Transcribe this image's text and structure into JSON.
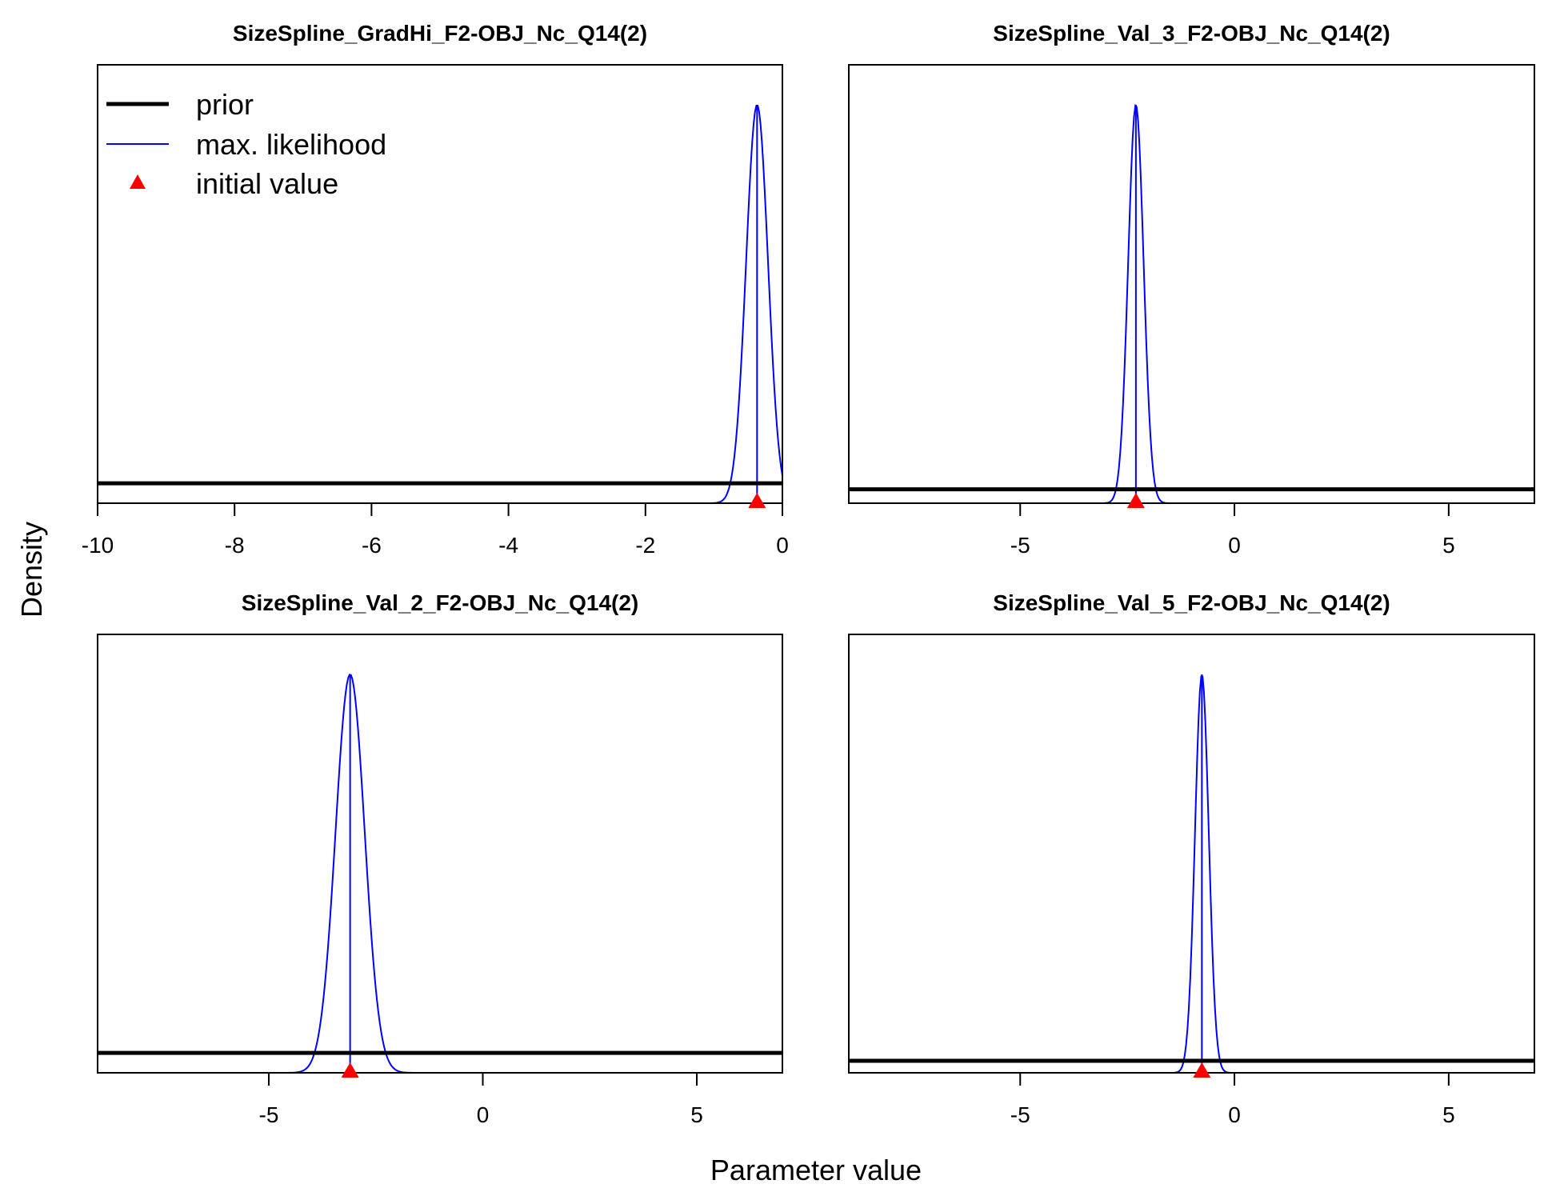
{
  "figure": {
    "xlabel": "Parameter value",
    "ylabel": "Density"
  },
  "legend": {
    "placement": "top-left of first panel",
    "entries": [
      {
        "label": "prior",
        "kind": "line",
        "color": "#000000"
      },
      {
        "label": "max. likelihood",
        "kind": "line",
        "color": "#0000ff"
      },
      {
        "label": "initial value",
        "kind": "triangle",
        "color": "#ff0000"
      }
    ]
  },
  "colors": {
    "prior": "#000000",
    "mle": "#0000ff",
    "initial": "#ff0000",
    "frame": "#000000"
  },
  "chart_data": [
    {
      "type": "line",
      "title": "SizeSpline_GradHi_F2-OBJ_Nc_Q14(2)",
      "xlim": [
        -10,
        0
      ],
      "ticks": [
        -10,
        -8,
        -6,
        -4,
        -2,
        0
      ],
      "tick_labels": [
        "-10",
        "-8",
        "-6",
        "-4",
        "-2",
        "0"
      ],
      "prior_level": 0.05,
      "mle": {
        "mean": -0.37,
        "sd": 0.16
      },
      "initial_value": -0.37
    },
    {
      "type": "line",
      "title": "SizeSpline_Val_3_F2-OBJ_Nc_Q14(2)",
      "xlim": [
        -9,
        7
      ],
      "ticks": [
        -5,
        0,
        5
      ],
      "tick_labels": [
        "-5",
        "0",
        "5"
      ],
      "prior_level": 0.035,
      "mle": {
        "mean": -2.3,
        "sd": 0.18
      },
      "initial_value": -2.3
    },
    {
      "type": "line",
      "title": "SizeSpline_Val_2_F2-OBJ_Nc_Q14(2)",
      "xlim": [
        -9,
        7
      ],
      "ticks": [
        -5,
        0,
        5
      ],
      "tick_labels": [
        "-5",
        "0",
        "5"
      ],
      "prior_level": 0.05,
      "mle": {
        "mean": -3.1,
        "sd": 0.34
      },
      "initial_value": -3.1
    },
    {
      "type": "line",
      "title": "SizeSpline_Val_5_F2-OBJ_Nc_Q14(2)",
      "xlim": [
        -9,
        7
      ],
      "ticks": [
        -5,
        0,
        5
      ],
      "tick_labels": [
        "-5",
        "0",
        "5"
      ],
      "prior_level": 0.03,
      "mle": {
        "mean": -0.76,
        "sd": 0.16
      },
      "initial_value": -0.76
    }
  ]
}
